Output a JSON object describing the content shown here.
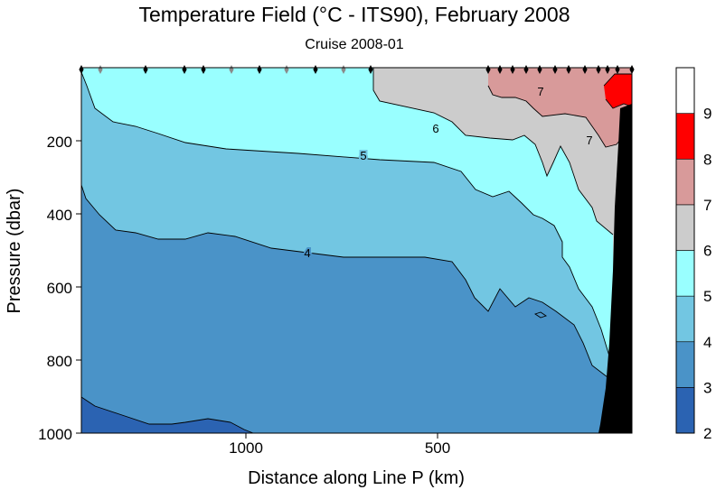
{
  "chart_data": {
    "type": "contour",
    "title": "Temperature Field  (°C - ITS90),  February 2008",
    "subtitle": "Cruise 2008-01",
    "xlabel": "Distance along Line P  (km)",
    "ylabel": "Pressure  (dbar)",
    "x_ticks": [
      "1000",
      "500"
    ],
    "y_ticks": [
      "200",
      "400",
      "600",
      "800",
      "1000"
    ],
    "colorbar": {
      "levels": [
        2,
        3,
        4,
        5,
        6,
        7,
        8,
        9
      ],
      "labels": [
        "2",
        "3",
        "4",
        "5",
        "6",
        "7",
        "8",
        "9"
      ],
      "colors": [
        "#2b63b2",
        "#4a93c8",
        "#72c6e2",
        "#99ffff",
        "#cccccc",
        "#d89a9a",
        "#ff0000",
        "#ffffff"
      ]
    },
    "contour_labels": [
      "4",
      "5",
      "6",
      "7",
      "7"
    ],
    "bottom_fill_color": "#000000"
  }
}
